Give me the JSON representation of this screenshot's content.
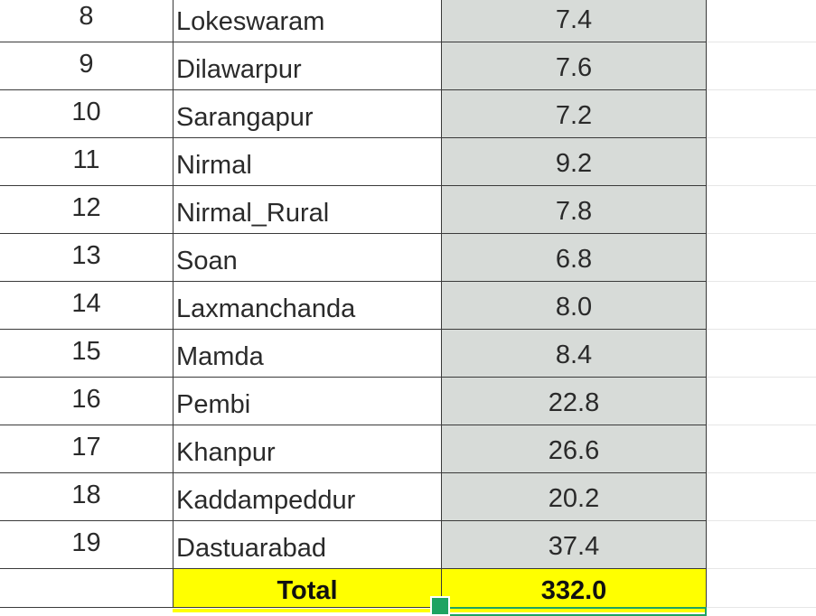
{
  "rows": [
    {
      "num": "8",
      "name": "Lokeswaram",
      "value": "7.4"
    },
    {
      "num": "9",
      "name": "Dilawarpur",
      "value": "7.6"
    },
    {
      "num": "10",
      "name": "Sarangapur",
      "value": "7.2"
    },
    {
      "num": "11",
      "name": "Nirmal",
      "value": "9.2"
    },
    {
      "num": "12",
      "name": "Nirmal_Rural",
      "value": "7.8"
    },
    {
      "num": "13",
      "name": "Soan",
      "value": "6.8"
    },
    {
      "num": "14",
      "name": "Laxmanchanda",
      "value": "8.0"
    },
    {
      "num": "15",
      "name": "Mamda",
      "value": "8.4"
    },
    {
      "num": "16",
      "name": "Pembi",
      "value": "22.8"
    },
    {
      "num": "17",
      "name": "Khanpur",
      "value": "26.6"
    },
    {
      "num": "18",
      "name": "Kaddampeddur",
      "value": "20.2"
    },
    {
      "num": "19",
      "name": "Dastuarabad",
      "value": "37.4"
    }
  ],
  "total": {
    "label": "Total",
    "value": "332.0"
  },
  "colors": {
    "value_column_bg": "#d7dbd8",
    "total_highlight": "#ffff00",
    "selection": "#1ea362"
  }
}
